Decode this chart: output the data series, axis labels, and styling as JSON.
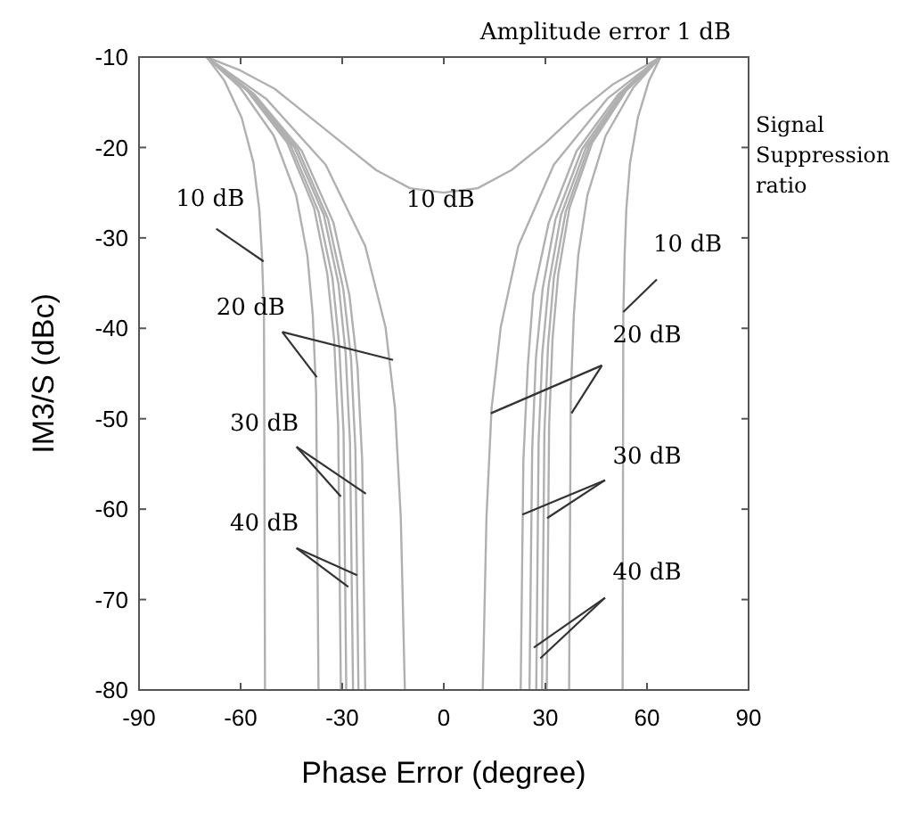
{
  "chart_data": {
    "type": "line",
    "xlabel": "Phase Error (degree)",
    "ylabel": "IM3/S (dBc)",
    "xlim": [
      -90,
      90
    ],
    "xticks": [
      -90,
      -60,
      -30,
      0,
      30,
      60,
      90
    ],
    "ylim": [
      -80,
      -10
    ],
    "yticks": [
      -80,
      -70,
      -60,
      -50,
      -40,
      -30,
      -20,
      -10
    ],
    "grid": false,
    "line_style": "solid",
    "marker": "none",
    "series": [
      {
        "color": "#b0b0b0",
        "x": [
          -70,
          -60,
          -50,
          -40,
          -30,
          -20,
          -10,
          0,
          10,
          20,
          30,
          40,
          50,
          57,
          64
        ],
        "values": [
          -10,
          -11.5,
          -13.5,
          -16.5,
          -19.5,
          -22.5,
          -24.5,
          -25,
          -24.5,
          -22.5,
          -19.5,
          -16,
          -13,
          -11.5,
          -10
        ]
      },
      {
        "color": "#b0b0b0",
        "x": [
          -70,
          -64.8,
          -59.7,
          -56.2,
          -54.5,
          -53.7,
          -53.1,
          -52.8
        ],
        "values": [
          -10,
          -12.6,
          -16.7,
          -21.7,
          -26.8,
          -31.9,
          -38.6,
          -80
        ]
      },
      {
        "color": "#b0b0b0",
        "x": [
          -70,
          -60.1,
          -50.2,
          -43.6,
          -40.3,
          -38.7,
          -37.7,
          -37
        ],
        "values": [
          -10,
          -13.4,
          -18.7,
          -25.3,
          -31.9,
          -38.5,
          -47.2,
          -80
        ]
      },
      {
        "color": "#b0b0b0",
        "x": [
          -70,
          -58.1,
          -46.2,
          -38.3,
          -34.4,
          -32.4,
          -31.2,
          -30.4
        ],
        "values": [
          -10,
          -13.7,
          -19.5,
          -26.7,
          -34,
          -41.2,
          -50.7,
          -80
        ]
      },
      {
        "color": "#b0b0b0",
        "x": [
          -70,
          -57.6,
          -45.3,
          -37,
          -32.9,
          -30.9,
          -29.6,
          -28.8
        ],
        "values": [
          -10,
          -13.8,
          -19.7,
          -27.1,
          -34.4,
          -41.8,
          -51.5,
          -80
        ]
      },
      {
        "color": "#b0b0b0",
        "x": [
          -70,
          -57,
          -44.1,
          -35.4,
          -31.1,
          -29,
          -27.7,
          -26.8
        ],
        "values": [
          -10,
          -13.9,
          -20,
          -27.5,
          -35.1,
          -42.7,
          -52.6,
          -80
        ]
      },
      {
        "color": "#b0b0b0",
        "x": [
          -70,
          -56.6,
          -43.1,
          -34.2,
          -29.7,
          -27.4,
          -26.1,
          -25.2
        ],
        "values": [
          -10,
          -14,
          -20.2,
          -27.9,
          -35.6,
          -43.3,
          -53.4,
          -80
        ]
      },
      {
        "color": "#b0b0b0",
        "x": [
          -70,
          -56,
          -41.9,
          -32.6,
          -27.9,
          -25.5,
          -24.1,
          -23.2
        ],
        "values": [
          -10,
          -14.1,
          -20.4,
          -28.3,
          -36.3,
          -44.2,
          -54.6,
          -80
        ]
      },
      {
        "color": "#b0b0b0",
        "x": [
          -70,
          -52.5,
          -34.9,
          -23.2,
          -17.2,
          -14.4,
          -12.7,
          -11.5
        ],
        "values": [
          -10,
          -14.6,
          -21.9,
          -30.9,
          -39.9,
          -48.9,
          -60.9,
          -80
        ]
      },
      {
        "color": "#b0b0b0",
        "x": [
          64,
          60.6,
          57.3,
          55,
          53.9,
          53.4,
          53,
          52.8
        ],
        "values": [
          -10,
          -12.6,
          -16.7,
          -21.7,
          -26.8,
          -31.9,
          -38.6,
          -80
        ]
      },
      {
        "color": "#b0b0b0",
        "x": [
          64,
          55.9,
          47.8,
          42.4,
          39.7,
          38.4,
          37.5,
          37
        ],
        "values": [
          -10,
          -13.4,
          -18.7,
          -25.3,
          -31.9,
          -38.5,
          -47.2,
          -80
        ]
      },
      {
        "color": "#b0b0b0",
        "x": [
          64,
          53.9,
          43.8,
          37.1,
          33.8,
          32.1,
          31.1,
          30.4
        ],
        "values": [
          -10,
          -13.7,
          -19.5,
          -26.7,
          -34,
          -41.2,
          -50.7,
          -80
        ]
      },
      {
        "color": "#b0b0b0",
        "x": [
          64,
          53.5,
          43,
          36,
          32.5,
          30.8,
          29.7,
          29
        ],
        "values": [
          -10,
          -13.8,
          -19.7,
          -27.1,
          -34.4,
          -41.8,
          -51.5,
          -80
        ]
      },
      {
        "color": "#b0b0b0",
        "x": [
          64,
          53,
          42,
          34.6,
          31,
          29.1,
          28,
          27.3
        ],
        "values": [
          -10,
          -13.9,
          -20,
          -27.5,
          -35.1,
          -42.7,
          -52.6,
          -80
        ]
      },
      {
        "color": "#b0b0b0",
        "x": [
          64,
          52.4,
          40.8,
          33,
          29.2,
          27.2,
          26.1,
          25.3
        ],
        "values": [
          -10,
          -14,
          -20.2,
          -27.9,
          -35.6,
          -43.3,
          -53.4,
          -80
        ]
      },
      {
        "color": "#b0b0b0",
        "x": [
          64,
          51.6,
          39.2,
          31,
          26.4,
          24.8,
          23.5,
          22.7
        ],
        "values": [
          -10,
          -14.1,
          -20.4,
          -28.3,
          -36.3,
          -44.2,
          -54.6,
          -80
        ]
      },
      {
        "color": "#b0b0b0",
        "x": [
          64,
          48.3,
          32.5,
          22,
          16.8,
          14.1,
          12.6,
          11.5
        ],
        "values": [
          -10,
          -14.6,
          -21.9,
          -30.9,
          -39.9,
          -48.9,
          -60.9,
          -80
        ]
      }
    ],
    "annotations": [
      "Amplitude error 1 dB",
      "Signal Suppression ratio",
      {
        "text": "10 dB",
        "x": -53.2,
        "y": -32.6
      },
      "10 dB",
      {
        "text": "10 dB",
        "x": 53,
        "y": -38.2
      },
      {
        "text": "20 dB",
        "x": -15,
        "y": -43.5
      },
      {
        "text": "20 dB",
        "x": 13.9,
        "y": -49.4
      },
      {
        "text": "30 dB",
        "x": -30.4,
        "y": -58.6
      },
      {
        "text": "30 dB",
        "x": 23.2,
        "y": -60.6
      },
      {
        "text": "40 dB",
        "x": -28.2,
        "y": -68.6
      },
      {
        "text": "40 dB",
        "x": 26.6,
        "y": -75.3
      }
    ]
  }
}
